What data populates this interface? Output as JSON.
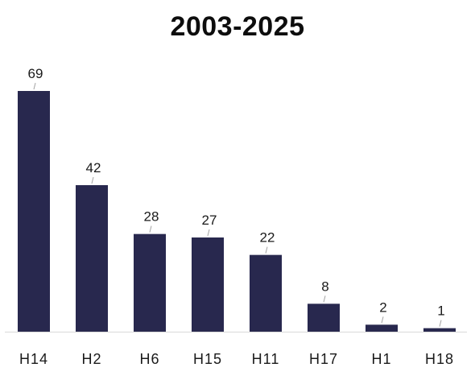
{
  "chart_data": {
    "type": "bar",
    "title": "2003-2025",
    "categories": [
      "H14",
      "H2",
      "H6",
      "H15",
      "H11",
      "H17",
      "H1",
      "H18"
    ],
    "values": [
      69,
      42,
      28,
      27,
      22,
      8,
      2,
      1
    ],
    "xlabel": "",
    "ylabel": "",
    "ylim": [
      0,
      69
    ],
    "grid": false,
    "legend": "none",
    "bar_color": "#28284e",
    "axis_color": "#d9d9d9",
    "leader_color": "#a6a6a6"
  }
}
